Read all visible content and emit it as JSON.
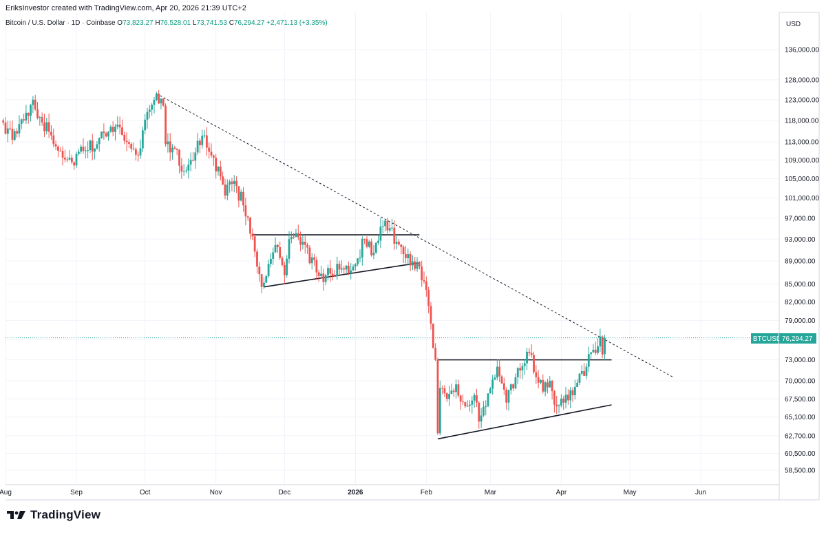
{
  "header": {
    "credit": "EriksInvestor created with TradingView.com, Apr 20, 2026 21:39 UTC+2",
    "symbol_desc": "Bitcoin / U.S. Dollar · 1D · Coinbase",
    "open_label": "O",
    "open": "73,823.27",
    "high_label": "H",
    "high": "76,528.01",
    "low_label": "L",
    "low": "73,741.53",
    "close_label": "C",
    "close": "76,294.27",
    "change": "+2,471.13 (+3.35%)"
  },
  "axis": {
    "currency": "USD",
    "last_price_symbol": "BTCUSD",
    "last_price": "76,294.27"
  },
  "brand": {
    "name": "TradingView"
  },
  "colors": {
    "up": "#26a69a",
    "down": "#ef5350",
    "grid": "#f0f3fa",
    "price_line": "#26a69a"
  },
  "chart_data": {
    "type": "candlestick",
    "symbol": "BTCUSD",
    "scale": "log",
    "y_ticks": [
      136000,
      128000,
      123000,
      118000,
      113000,
      109000,
      105000,
      101000,
      97000,
      93000,
      89000,
      85000,
      82000,
      79000,
      76000,
      73000,
      70000,
      67500,
      65100,
      62700,
      60500,
      58500
    ],
    "y_tick_labels": [
      "136,000.00",
      "128,000.00",
      "123,000.00",
      "118,000.00",
      "113,000.00",
      "109,000.00",
      "105,000.00",
      "101,000.00",
      "97,000.00",
      "93,000.00",
      "89,000.00",
      "85,000.00",
      "82,000.00",
      "79,000.00",
      "76,000.00",
      "73,000.00",
      "70,000.00",
      "67,500.00",
      "65,100.00",
      "62,700.00",
      "60,500.00",
      "58,500.00"
    ],
    "x_ticks": [
      {
        "date": "2025-08-01",
        "label": "Aug",
        "bold": false
      },
      {
        "date": "2025-09-01",
        "label": "Sep",
        "bold": false
      },
      {
        "date": "2025-10-01",
        "label": "Oct",
        "bold": false
      },
      {
        "date": "2025-11-01",
        "label": "Nov",
        "bold": false
      },
      {
        "date": "2025-12-01",
        "label": "Dec",
        "bold": false
      },
      {
        "date": "2026-01-01",
        "label": "2026",
        "bold": true
      },
      {
        "date": "2026-02-01",
        "label": "Feb",
        "bold": false
      },
      {
        "date": "2026-03-01",
        "label": "Mar",
        "bold": false
      },
      {
        "date": "2026-04-01",
        "label": "Apr",
        "bold": false
      },
      {
        "date": "2026-05-01",
        "label": "May",
        "bold": false
      },
      {
        "date": "2026-06-01",
        "label": "Jun",
        "bold": false
      }
    ],
    "anchors": [
      {
        "date": "2025-07-31",
        "close": 117500
      },
      {
        "date": "2025-08-04",
        "close": 113500
      },
      {
        "date": "2025-08-09",
        "close": 118000
      },
      {
        "date": "2025-08-13",
        "close": 123000
      },
      {
        "date": "2025-08-17",
        "close": 117500
      },
      {
        "date": "2025-08-21",
        "close": 114500
      },
      {
        "date": "2025-08-25",
        "close": 111000
      },
      {
        "date": "2025-08-30",
        "close": 108500
      },
      {
        "date": "2025-09-04",
        "close": 111000
      },
      {
        "date": "2025-09-10",
        "close": 112500
      },
      {
        "date": "2025-09-16",
        "close": 116500
      },
      {
        "date": "2025-09-19",
        "close": 117000
      },
      {
        "date": "2025-09-25",
        "close": 111500
      },
      {
        "date": "2025-09-28",
        "close": 110000
      },
      {
        "date": "2025-10-02",
        "close": 120000
      },
      {
        "date": "2025-10-06",
        "close": 124500
      },
      {
        "date": "2025-10-09",
        "close": 121500
      },
      {
        "date": "2025-10-10",
        "close": 112500
      },
      {
        "date": "2025-10-14",
        "close": 111500
      },
      {
        "date": "2025-10-17",
        "close": 106500
      },
      {
        "date": "2025-10-21",
        "close": 109000
      },
      {
        "date": "2025-10-27",
        "close": 114500
      },
      {
        "date": "2025-10-31",
        "close": 109500
      },
      {
        "date": "2025-11-05",
        "close": 101500
      },
      {
        "date": "2025-11-09",
        "close": 104500
      },
      {
        "date": "2025-11-13",
        "close": 99500
      },
      {
        "date": "2025-11-17",
        "close": 93500
      },
      {
        "date": "2025-11-21",
        "close": 84500
      },
      {
        "date": "2025-11-24",
        "close": 88500
      },
      {
        "date": "2025-11-28",
        "close": 91500
      },
      {
        "date": "2025-12-01",
        "close": 86500
      },
      {
        "date": "2025-12-03",
        "close": 93000
      },
      {
        "date": "2025-12-09",
        "close": 92500
      },
      {
        "date": "2025-12-15",
        "close": 87000
      },
      {
        "date": "2025-12-19",
        "close": 86500
      },
      {
        "date": "2025-12-25",
        "close": 87500
      },
      {
        "date": "2025-12-31",
        "close": 88000
      },
      {
        "date": "2026-01-05",
        "close": 93000
      },
      {
        "date": "2026-01-09",
        "close": 90500
      },
      {
        "date": "2026-01-14",
        "close": 96500
      },
      {
        "date": "2026-01-19",
        "close": 92500
      },
      {
        "date": "2026-01-23",
        "close": 89500
      },
      {
        "date": "2026-01-29",
        "close": 88000
      },
      {
        "date": "2026-02-01",
        "close": 84000
      },
      {
        "date": "2026-02-03",
        "close": 78500
      },
      {
        "date": "2026-02-05",
        "close": 73000
      },
      {
        "date": "2026-02-06",
        "close": 63000
      },
      {
        "date": "2026-02-07",
        "close": 69000
      },
      {
        "date": "2026-02-10",
        "close": 67500
      },
      {
        "date": "2026-02-14",
        "close": 69500
      },
      {
        "date": "2026-02-18",
        "close": 66500
      },
      {
        "date": "2026-02-22",
        "close": 68000
      },
      {
        "date": "2026-02-24",
        "close": 64500
      },
      {
        "date": "2026-02-27",
        "close": 66500
      },
      {
        "date": "2026-03-04",
        "close": 72000
      },
      {
        "date": "2026-03-08",
        "close": 67000
      },
      {
        "date": "2026-03-12",
        "close": 70500
      },
      {
        "date": "2026-03-16",
        "close": 72500
      },
      {
        "date": "2026-03-18",
        "close": 74000
      },
      {
        "date": "2026-03-21",
        "close": 70500
      },
      {
        "date": "2026-03-24",
        "close": 68500
      },
      {
        "date": "2026-03-27",
        "close": 70000
      },
      {
        "date": "2026-03-30",
        "close": 66500
      },
      {
        "date": "2026-04-02",
        "close": 67000
      },
      {
        "date": "2026-04-06",
        "close": 68000
      },
      {
        "date": "2026-04-09",
        "close": 71000
      },
      {
        "date": "2026-04-12",
        "close": 72000
      },
      {
        "date": "2026-04-15",
        "close": 74500
      },
      {
        "date": "2026-04-17",
        "close": 75000
      },
      {
        "date": "2026-04-18",
        "close": 76500
      },
      {
        "date": "2026-04-19",
        "close": 73800
      },
      {
        "date": "2026-04-20",
        "close": 76294.27
      }
    ],
    "lines": [
      {
        "name": "downtrend",
        "style": "dashed",
        "from": {
          "date": "2025-10-06",
          "price": 124500
        },
        "to": {
          "date": "2026-05-20",
          "price": 70500
        }
      },
      {
        "name": "upper-resistance-1",
        "style": "solid",
        "from": {
          "date": "2025-11-17",
          "price": 93800
        },
        "to": {
          "date": "2026-01-29",
          "price": 93800
        }
      },
      {
        "name": "lower-support-1",
        "style": "solid",
        "from": {
          "date": "2025-11-22",
          "price": 84500
        },
        "to": {
          "date": "2026-01-29",
          "price": 88700
        }
      },
      {
        "name": "upper-resistance-2",
        "style": "solid",
        "from": {
          "date": "2026-02-06",
          "price": 73000
        },
        "to": {
          "date": "2026-04-23",
          "price": 73000
        }
      },
      {
        "name": "lower-support-2",
        "style": "solid",
        "from": {
          "date": "2026-02-06",
          "price": 62300
        },
        "to": {
          "date": "2026-04-23",
          "price": 66700
        }
      }
    ],
    "last_price": 76294.27
  }
}
